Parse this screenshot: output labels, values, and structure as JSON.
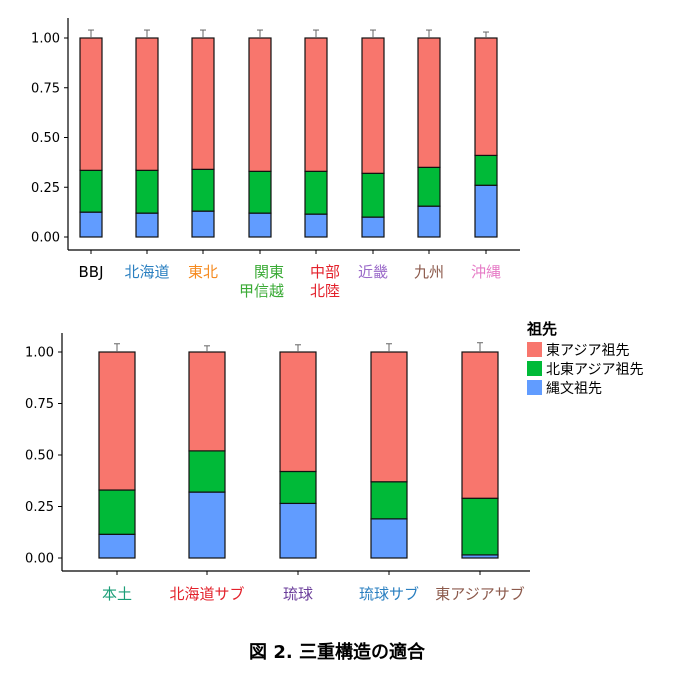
{
  "colors": {
    "east_asian": "#F8766D",
    "northeast_asian": "#00BA38",
    "jomon": "#619CFF"
  },
  "legend": {
    "title": "祖先",
    "items": [
      "東アジア祖先",
      "北東アジア祖先",
      "縄文祖先"
    ],
    "placement": "right"
  },
  "figure_title": "図 2. 三重構造の適合",
  "chart_data": [
    {
      "type": "bar",
      "stacked": true,
      "ylim": [
        0,
        1
      ],
      "yticks": [
        "0.00",
        "0.25",
        "0.50",
        "0.75",
        "1.00"
      ],
      "categories": [
        "BBJ",
        "北海道",
        "東北",
        "関東\n甲信越",
        "中部\n北陸",
        "近畿",
        "九州",
        "沖縄"
      ],
      "category_colors": [
        "#000000",
        "#2A7FC0",
        "#F58A1F",
        "#3AAA35",
        "#E3212B",
        "#9B6BC9",
        "#8C5A4C",
        "#E67BC6"
      ],
      "series": [
        {
          "name": "縄文祖先",
          "values": [
            0.125,
            0.12,
            0.13,
            0.12,
            0.115,
            0.1,
            0.155,
            0.26
          ],
          "err": [
            0.01,
            0.01,
            0.01,
            0.01,
            0.01,
            0.01,
            0.01,
            0.01
          ]
        },
        {
          "name": "北東アジア祖先",
          "values": [
            0.21,
            0.215,
            0.21,
            0.21,
            0.215,
            0.22,
            0.195,
            0.15
          ],
          "err": [
            0.05,
            0.05,
            0.05,
            0.05,
            0.05,
            0.05,
            0.05,
            0.05
          ]
        },
        {
          "name": "東アジア祖先",
          "values": [
            0.665,
            0.665,
            0.66,
            0.67,
            0.67,
            0.68,
            0.65,
            0.59
          ],
          "err": [
            0.04,
            0.04,
            0.04,
            0.04,
            0.04,
            0.04,
            0.04,
            0.03
          ]
        }
      ]
    },
    {
      "type": "bar",
      "stacked": true,
      "ylim": [
        0,
        1
      ],
      "yticks": [
        "0.00",
        "0.25",
        "0.50",
        "0.75",
        "1.00"
      ],
      "categories": [
        "本土",
        "北海道サブ",
        "琉球",
        "琉球サブ",
        "東アジアサブ"
      ],
      "category_colors": [
        "#1B9E77",
        "#E3212B",
        "#6A3D9A",
        "#2A7FC0",
        "#8C5A4C"
      ],
      "series": [
        {
          "name": "縄文祖先",
          "values": [
            0.115,
            0.32,
            0.265,
            0.19,
            0.015
          ],
          "err": [
            0.02,
            0.02,
            0.02,
            0.025,
            0.025
          ]
        },
        {
          "name": "北東アジア祖先",
          "values": [
            0.215,
            0.2,
            0.155,
            0.18,
            0.275
          ],
          "err": [
            0.05,
            0.045,
            0.05,
            0.05,
            0.06
          ]
        },
        {
          "name": "東アジア祖先",
          "values": [
            0.67,
            0.48,
            0.58,
            0.63,
            0.71
          ],
          "err": [
            0.04,
            0.03,
            0.035,
            0.04,
            0.045
          ]
        }
      ]
    }
  ]
}
